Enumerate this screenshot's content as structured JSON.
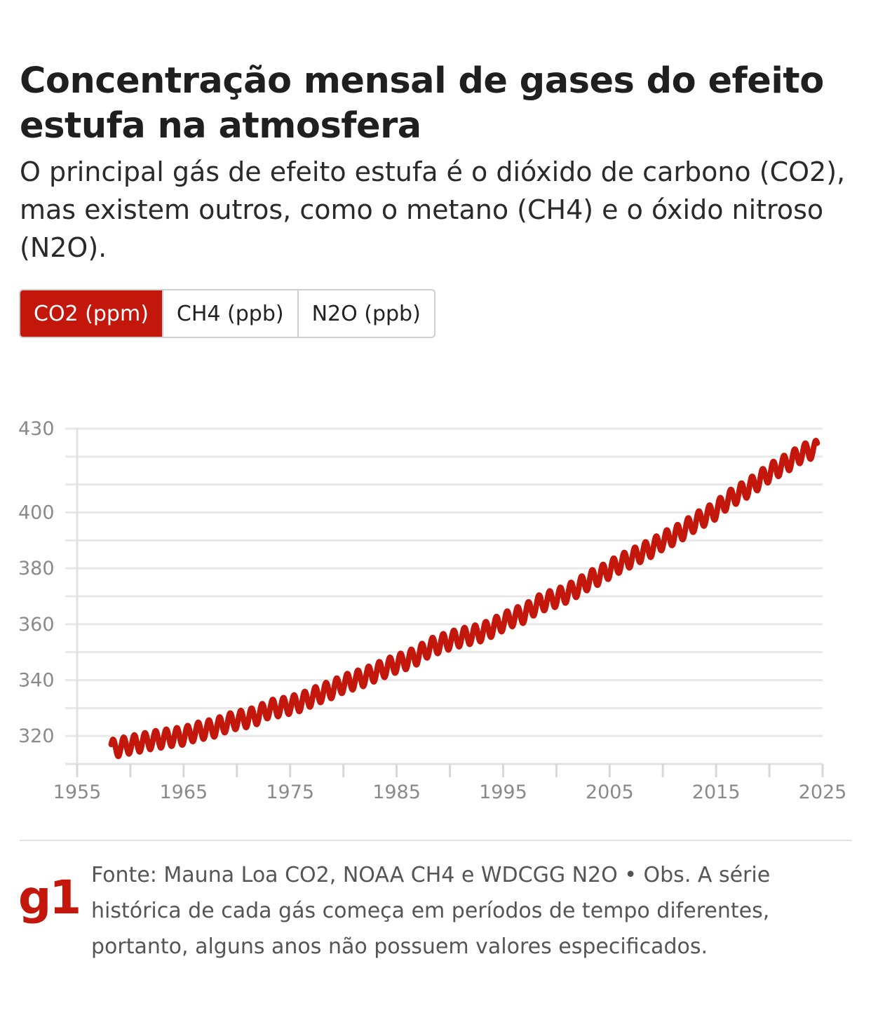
{
  "title": "Concentração mensal de gases do efeito estufa na atmosfera",
  "subtitle": "O principal gás de efeito estufa é o dióxido de carbono (CO2), mas existem outros, como o metano (CH4) e o óxido nitroso (N2O).",
  "tabs": [
    {
      "label": "CO2 (ppm)",
      "active": true
    },
    {
      "label": "CH4 (ppb)",
      "active": false
    },
    {
      "label": "N2O (ppb)",
      "active": false
    }
  ],
  "colors": {
    "accent": "#c4170c",
    "grid": "#e8e8e8",
    "axis_text": "#8a8a8a"
  },
  "chart_data": {
    "type": "line",
    "title": "",
    "xlabel": "",
    "ylabel": "",
    "xlim": [
      1955,
      2025
    ],
    "ylim": [
      310,
      430
    ],
    "x_ticks": [
      "1955",
      "1965",
      "1975",
      "1985",
      "1995",
      "2005",
      "2015",
      "2025"
    ],
    "y_ticks": [
      "430",
      "400",
      "380",
      "360",
      "340",
      "320"
    ],
    "grid": true,
    "series": [
      {
        "color": "#c4170c",
        "x": [
          1958.0,
          1959.0,
          1960.0,
          1961.0,
          1962.0,
          1963.0,
          1964.0,
          1965.0,
          1966.0,
          1967.0,
          1968.0,
          1969.0,
          1970.0,
          1971.0,
          1972.0,
          1973.0,
          1974.0,
          1975.0,
          1976.0,
          1977.0,
          1978.0,
          1979.0,
          1980.0,
          1981.0,
          1982.0,
          1983.0,
          1984.0,
          1985.0,
          1986.0,
          1987.0,
          1988.0,
          1989.0,
          1990.0,
          1991.0,
          1992.0,
          1993.0,
          1994.0,
          1995.0,
          1996.0,
          1997.0,
          1998.0,
          1999.0,
          2000.0,
          2001.0,
          2002.0,
          2003.0,
          2004.0,
          2005.0,
          2006.0,
          2007.0,
          2008.0,
          2009.0,
          2010.0,
          2011.0,
          2012.0,
          2013.0,
          2014.0,
          2015.0,
          2016.0,
          2017.0,
          2018.0,
          2019.0,
          2020.0,
          2021.0,
          2022.0,
          2023.0,
          2024.0
        ],
        "y_annual_mean": [
          315.3,
          316.0,
          316.9,
          317.6,
          318.5,
          319.0,
          319.6,
          320.0,
          321.4,
          322.2,
          323.0,
          324.6,
          325.7,
          326.3,
          327.5,
          329.7,
          330.2,
          331.1,
          332.1,
          333.8,
          335.4,
          336.8,
          338.7,
          339.9,
          341.1,
          342.8,
          344.4,
          345.9,
          347.2,
          348.9,
          351.5,
          352.9,
          354.2,
          355.3,
          356.1,
          357.1,
          358.8,
          360.8,
          362.6,
          363.7,
          366.6,
          368.3,
          369.4,
          371.0,
          373.1,
          375.6,
          377.4,
          379.6,
          381.8,
          383.6,
          385.6,
          387.4,
          389.9,
          391.6,
          393.8,
          396.5,
          398.6,
          400.8,
          404.2,
          406.5,
          408.7,
          411.4,
          414.2,
          416.4,
          418.5,
          421.1,
          422.5
        ],
        "seasonal_amplitude": 3.2,
        "cycles_per_year": 1
      }
    ]
  },
  "footer": {
    "logo": "g1",
    "note": "Fonte: Mauna Loa CO2, NOAA CH4 e WDCGG N2O • Obs. A série histórica de cada gás começa em períodos de tempo diferentes, portanto, alguns anos não possuem valores especificados."
  }
}
